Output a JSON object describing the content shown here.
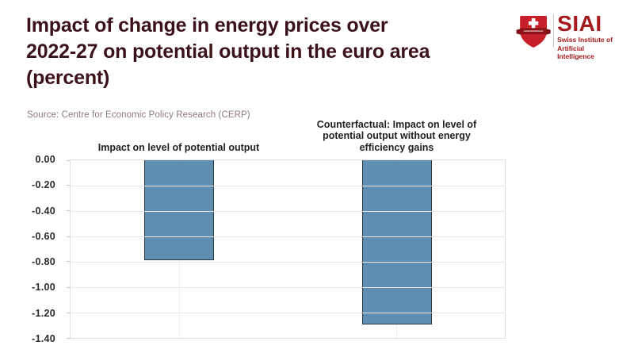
{
  "header": {
    "title": "Impact of change in energy prices over\n2022-27 on potential output in the euro area\n(percent)",
    "source": "Source: Centre for Economic Policy Research (CERP)",
    "logo": {
      "acronym": "SIAI",
      "name_line1": "Swiss Institute of",
      "name_line2": "Artificial Intelligence"
    }
  },
  "chart_data": {
    "type": "bar",
    "title": "Impact of change in energy prices over 2022-27 on potential output in the euro area (percent)",
    "source": "Source: Centre for Economic Policy Research (CERP)",
    "categories": [
      "Impact on level of potential output",
      "Counterfactual: Impact on level of potential output without energy efficiency gains"
    ],
    "values": [
      -0.78,
      -1.28
    ],
    "xlabel": "",
    "ylabel": "",
    "ylim": [
      -1.4,
      0
    ],
    "ytick_step": 0.2,
    "yticks": [
      "0.00",
      "-0.20",
      "-0.40",
      "-0.60",
      "-0.80",
      "-1.00",
      "-1.20",
      "-1.40"
    ],
    "grid": true,
    "legend_position": "none",
    "bar_color": "#5586ac",
    "bar_border_color": "#1c2b38"
  },
  "colors": {
    "title_text": "#3b1219",
    "source_text": "#8e7b7c",
    "logo_red": "#a6191c",
    "shield_red": "#c8202b",
    "shield_banner_red": "#8c1418",
    "axis_text": "#2b2b2b",
    "grid_line": "#e9e9e9"
  }
}
